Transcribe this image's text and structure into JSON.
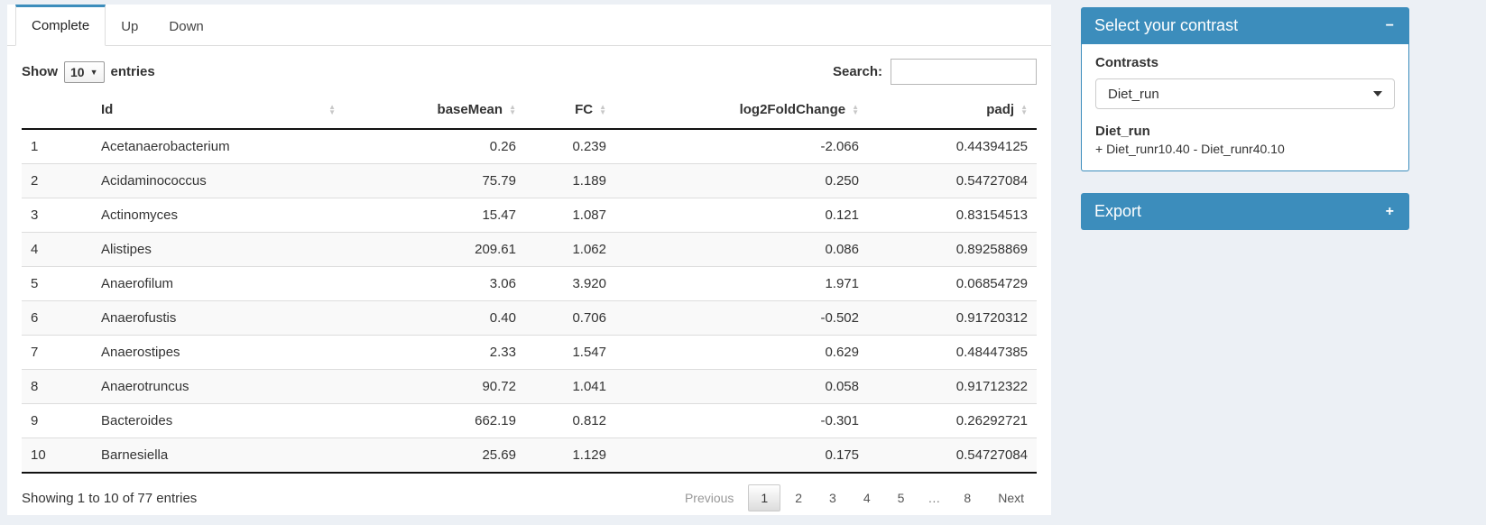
{
  "tabs": [
    {
      "label": "Complete",
      "active": true
    },
    {
      "label": "Up",
      "active": false
    },
    {
      "label": "Down",
      "active": false
    }
  ],
  "datatable": {
    "length": {
      "before": "Show",
      "value": "10",
      "after": "entries"
    },
    "search_label": "Search:",
    "search_value": "",
    "columns": {
      "n": "",
      "id": "Id",
      "basemean": "baseMean",
      "fc": "FC",
      "log2fc": "log2FoldChange",
      "padj": "padj"
    },
    "rows": [
      {
        "n": "1",
        "id": "Acetanaerobacterium",
        "basemean": "0.26",
        "fc": "0.239",
        "log2fc": "-2.066",
        "padj": "0.44394125"
      },
      {
        "n": "2",
        "id": "Acidaminococcus",
        "basemean": "75.79",
        "fc": "1.189",
        "log2fc": "0.250",
        "padj": "0.54727084"
      },
      {
        "n": "3",
        "id": "Actinomyces",
        "basemean": "15.47",
        "fc": "1.087",
        "log2fc": "0.121",
        "padj": "0.83154513"
      },
      {
        "n": "4",
        "id": "Alistipes",
        "basemean": "209.61",
        "fc": "1.062",
        "log2fc": "0.086",
        "padj": "0.89258869"
      },
      {
        "n": "5",
        "id": "Anaerofilum",
        "basemean": "3.06",
        "fc": "3.920",
        "log2fc": "1.971",
        "padj": "0.06854729"
      },
      {
        "n": "6",
        "id": "Anaerofustis",
        "basemean": "0.40",
        "fc": "0.706",
        "log2fc": "-0.502",
        "padj": "0.91720312"
      },
      {
        "n": "7",
        "id": "Anaerostipes",
        "basemean": "2.33",
        "fc": "1.547",
        "log2fc": "0.629",
        "padj": "0.48447385"
      },
      {
        "n": "8",
        "id": "Anaerotruncus",
        "basemean": "90.72",
        "fc": "1.041",
        "log2fc": "0.058",
        "padj": "0.91712322"
      },
      {
        "n": "9",
        "id": "Bacteroides",
        "basemean": "662.19",
        "fc": "0.812",
        "log2fc": "-0.301",
        "padj": "0.26292721"
      },
      {
        "n": "10",
        "id": "Barnesiella",
        "basemean": "25.69",
        "fc": "1.129",
        "log2fc": "0.175",
        "padj": "0.54727084"
      }
    ],
    "info": "Showing 1 to 10 of 77 entries",
    "pagination": {
      "previous": "Previous",
      "next": "Next",
      "pages": [
        {
          "label": "1",
          "active": true,
          "ellipsis": false,
          "interactable": "true"
        },
        {
          "label": "2",
          "active": false,
          "ellipsis": false,
          "interactable": "true"
        },
        {
          "label": "3",
          "active": false,
          "ellipsis": false,
          "interactable": "true"
        },
        {
          "label": "4",
          "active": false,
          "ellipsis": false,
          "interactable": "true"
        },
        {
          "label": "5",
          "active": false,
          "ellipsis": false,
          "interactable": "true"
        },
        {
          "label": "…",
          "active": false,
          "ellipsis": true,
          "interactable": "false"
        },
        {
          "label": "8",
          "active": false,
          "ellipsis": false,
          "interactable": "true"
        }
      ]
    }
  },
  "contrast_box": {
    "title": "Select your contrast",
    "collapse_icon": "−",
    "contrasts_label": "Contrasts",
    "selected_contrast": "Diet_run",
    "contrast_name": "Diet_run",
    "contrast_formula": "+ Diet_runr10.40 - Diet_runr40.10"
  },
  "export_box": {
    "title": "Export",
    "collapse_icon": "+"
  },
  "colors": {
    "primary": "#3c8dbc",
    "page_background": "#ecf0f5",
    "stripe": "#f9f9f9"
  }
}
